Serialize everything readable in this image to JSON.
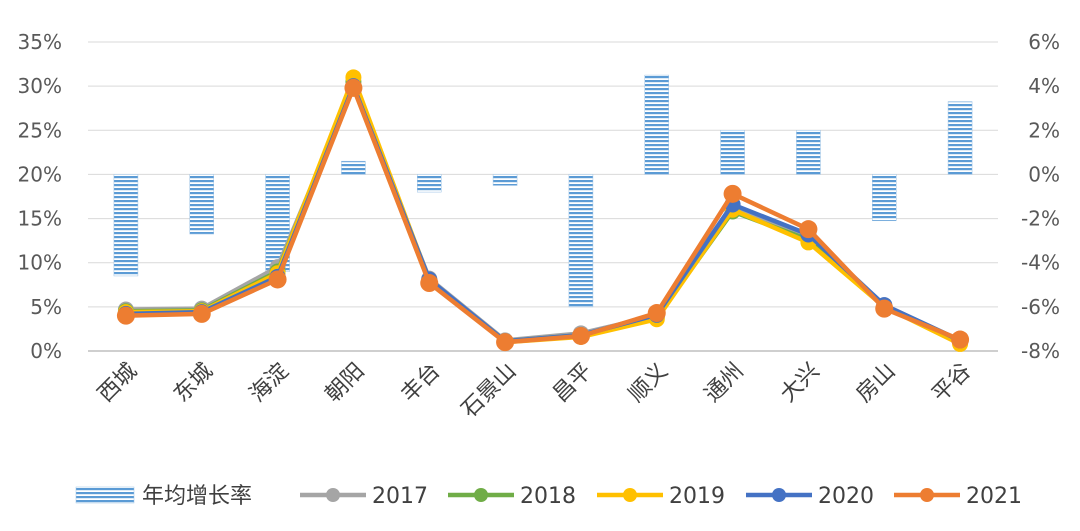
{
  "chart_data": {
    "type": "line",
    "categories": [
      "西城",
      "东城",
      "海淀",
      "朝阳",
      "丰台",
      "石景山",
      "昌平",
      "顺义",
      "通州",
      "大兴",
      "房山",
      "平谷"
    ],
    "left_axis": {
      "ylim": [
        0,
        35
      ],
      "ticks": [
        0,
        5,
        10,
        15,
        20,
        25,
        30,
        35
      ],
      "tick_labels": [
        "0%",
        "5%",
        "10%",
        "15%",
        "20%",
        "25%",
        "30%",
        "35%"
      ]
    },
    "right_axis": {
      "ylim": [
        -8,
        6
      ],
      "ticks": [
        -8,
        -6,
        -4,
        -2,
        0,
        2,
        4,
        6
      ],
      "tick_labels": [
        "-8%",
        "-6%",
        "-4%",
        "-2%",
        "0%",
        "2%",
        "4%",
        "6%"
      ]
    },
    "grid": true,
    "legend_position": "bottom",
    "bar_series": {
      "name": "年均增长率",
      "axis": "right",
      "color": "#5B9BD5",
      "values": [
        -4.6,
        -2.7,
        -4.4,
        0.6,
        -0.8,
        -0.5,
        -6.0,
        4.5,
        2.0,
        2.0,
        -2.1,
        3.3
      ]
    },
    "series": [
      {
        "name": "2017",
        "color": "#A5A5A5",
        "values": [
          4.7,
          4.8,
          9.5,
          30.0,
          8.2,
          1.2,
          2.0,
          4.0,
          16.2,
          13.0,
          5.2,
          1.2
        ]
      },
      {
        "name": "2018",
        "color": "#70AD47",
        "values": [
          4.5,
          4.6,
          9.0,
          30.5,
          8.0,
          1.1,
          1.8,
          3.8,
          15.8,
          12.6,
          5.1,
          1.0
        ]
      },
      {
        "name": "2019",
        "color": "#FFC000",
        "values": [
          4.4,
          4.5,
          8.8,
          31.0,
          8.0,
          1.0,
          1.6,
          3.6,
          16.0,
          12.3,
          5.0,
          0.8
        ]
      },
      {
        "name": "2020",
        "color": "#4472C4",
        "values": [
          4.2,
          4.4,
          8.4,
          30.0,
          8.1,
          1.1,
          1.8,
          4.1,
          16.6,
          13.2,
          5.2,
          1.2
        ]
      },
      {
        "name": "2021",
        "color": "#ED7D31",
        "values": [
          4.0,
          4.2,
          8.1,
          29.8,
          7.7,
          1.0,
          1.7,
          4.3,
          17.8,
          13.8,
          4.8,
          1.3
        ]
      }
    ]
  }
}
